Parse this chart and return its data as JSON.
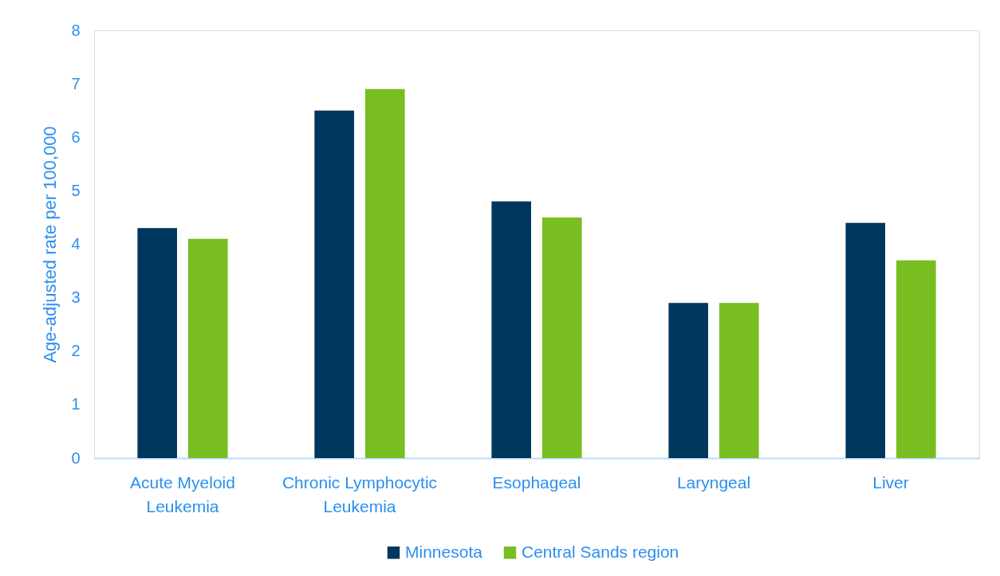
{
  "chart_data": {
    "type": "bar",
    "ylabel": "Age-adjusted rate per 100,000",
    "categories": [
      "Acute Myeloid Leukemia",
      "Chronic Lymphocytic Leukemia",
      "Esophageal",
      "Laryngeal",
      "Liver"
    ],
    "series": [
      {
        "name": "Minnesota",
        "color": "#00375f",
        "values": [
          4.3,
          6.5,
          4.8,
          2.9,
          4.4
        ]
      },
      {
        "name": "Central Sands region",
        "color": "#78be20",
        "values": [
          4.1,
          6.9,
          4.5,
          2.9,
          3.7
        ]
      }
    ],
    "ylim": [
      0,
      8
    ],
    "yticks": [
      0,
      1,
      2,
      3,
      4,
      5,
      6,
      7,
      8
    ],
    "legend": "bottom"
  }
}
